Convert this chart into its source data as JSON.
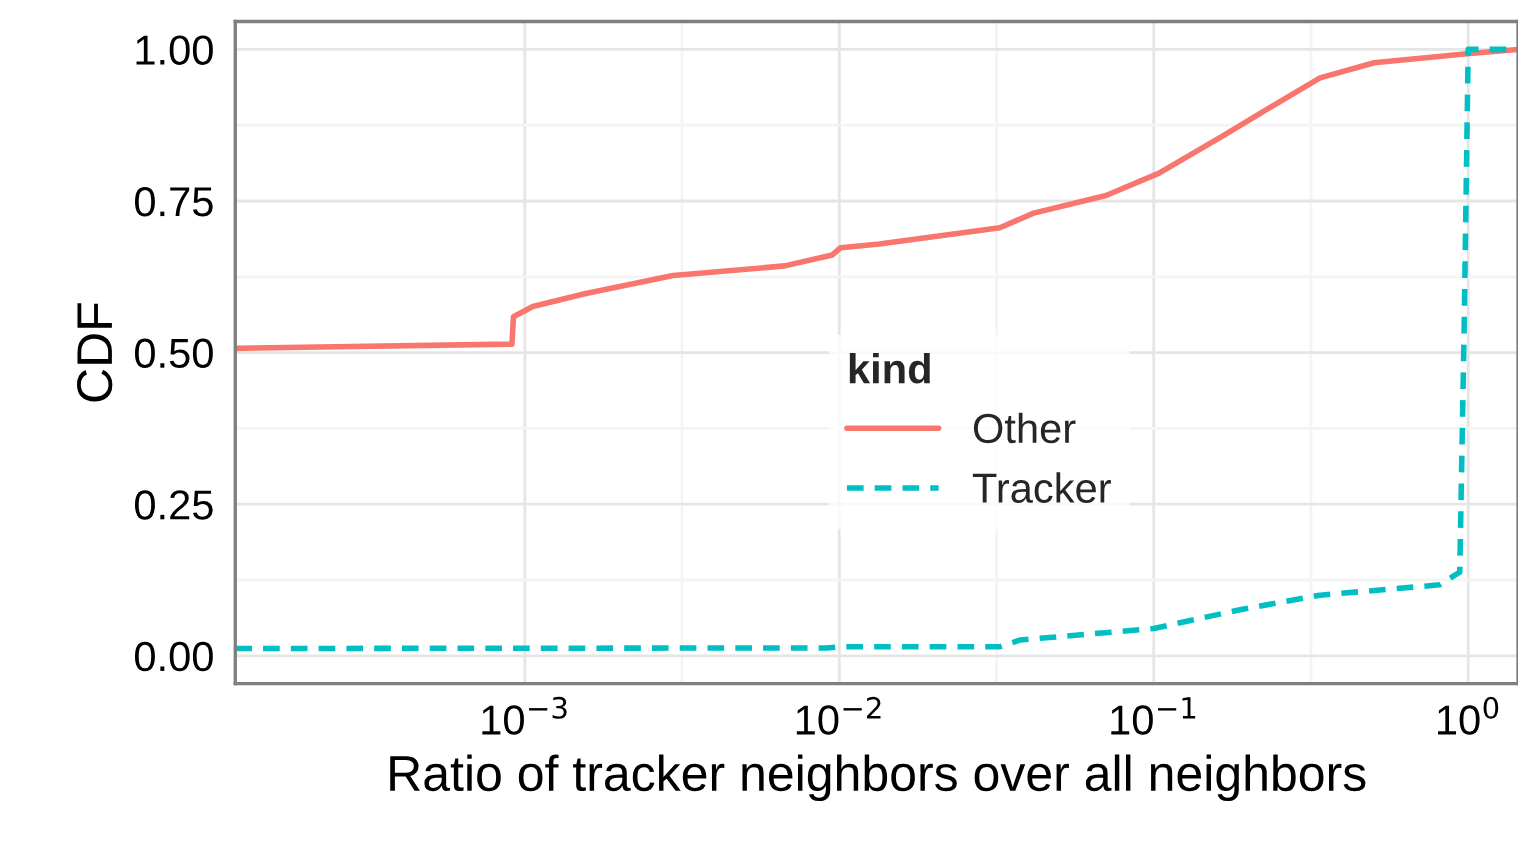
{
  "chart_data": {
    "type": "line",
    "xlabel": "Ratio of tracker neighbors over all neighbors",
    "ylabel": "CDF",
    "legend_title": "kind",
    "legend": "center",
    "grid": true,
    "log": "x",
    "xlim": [
      0.00012,
      1.44
    ],
    "ylim": [
      -0.046,
      1.046
    ],
    "xticks": [
      {
        "value": 0.001,
        "label": "10$^{−3}$"
      },
      {
        "value": 0.01,
        "label": "10$^{−2}$"
      },
      {
        "value": 0.1,
        "label": "10$^{−1}$"
      },
      {
        "value": 1,
        "label": "10$^{0}$"
      }
    ],
    "yticks": [
      {
        "value": 0,
        "label": "0.00"
      },
      {
        "value": 0.25,
        "label": "0.25"
      },
      {
        "value": 0.5,
        "label": "0.50"
      },
      {
        "value": 0.75,
        "label": "0.75"
      },
      {
        "value": 1,
        "label": "1.00"
      }
    ],
    "series": [
      {
        "name": "Other",
        "color": "#f8766d",
        "line_style": "solid",
        "x": [
          0.00012,
          0.00091,
          0.00092,
          0.00106,
          0.00155,
          0.00296,
          0.0067,
          0.0095,
          0.0101,
          0.0134,
          0.0324,
          0.0415,
          0.0705,
          0.104,
          0.169,
          0.252,
          0.338,
          0.502,
          0.99,
          1.44
        ],
        "values": [
          0.507,
          0.514,
          0.559,
          0.576,
          0.597,
          0.627,
          0.643,
          0.661,
          0.673,
          0.679,
          0.706,
          0.73,
          0.759,
          0.796,
          0.86,
          0.914,
          0.953,
          0.978,
          0.993,
          1.0
        ]
      },
      {
        "name": "Tracker",
        "color": "#00bfc4",
        "line_style": "dashed",
        "x": [
          0.00012,
          0.0091,
          0.0101,
          0.0324,
          0.0375,
          0.1,
          0.188,
          0.338,
          0.81,
          0.94,
          0.97,
          1.0,
          1.44
        ],
        "values": [
          0.012,
          0.013,
          0.015,
          0.015,
          0.026,
          0.045,
          0.076,
          0.1,
          0.117,
          0.138,
          0.53,
          1.0,
          1.0
        ]
      }
    ]
  }
}
